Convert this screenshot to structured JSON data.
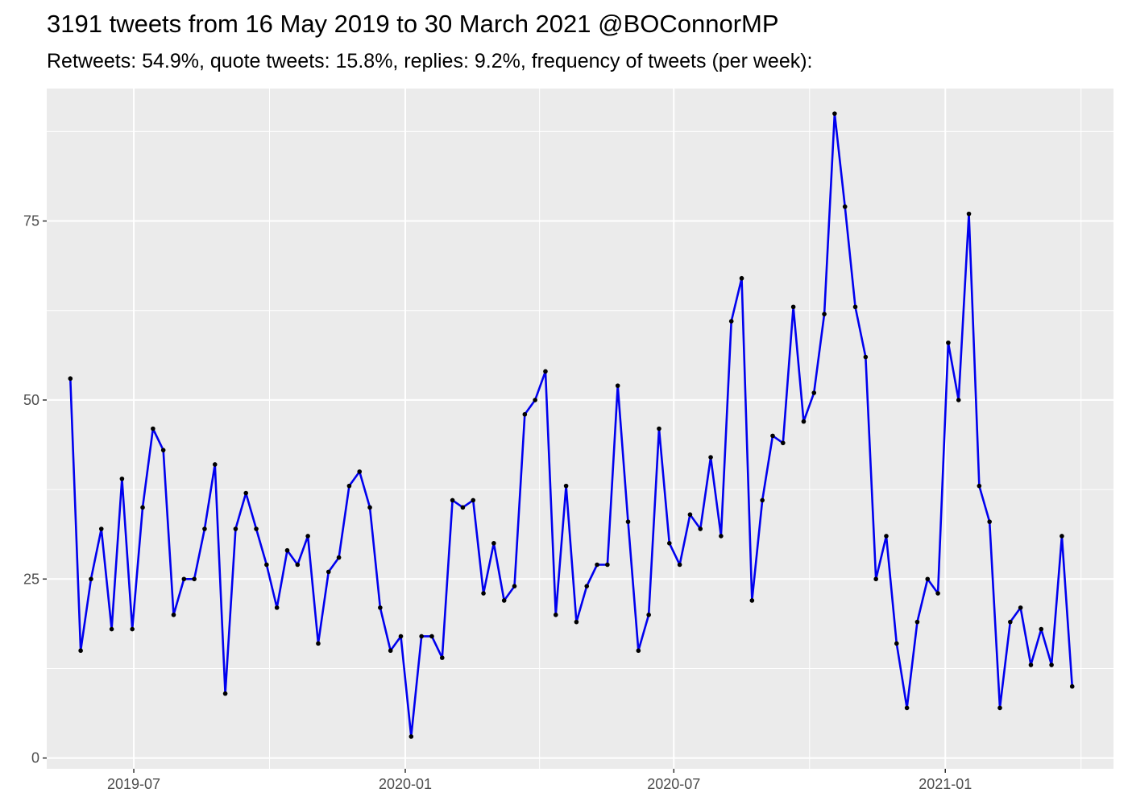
{
  "chart_data": {
    "type": "line",
    "title": "3191 tweets from 16 May 2019 to 30 March 2021 @BOConnorMP",
    "subtitle": "Retweets: 54.9%, quote tweets: 15.8%, replies: 9.2%, frequency of tweets (per week):",
    "xlabel": "",
    "ylabel": "",
    "x_ticks": [
      "2019-07",
      "2020-01",
      "2020-07",
      "2021-01"
    ],
    "y_ticks": [
      0,
      25,
      50,
      75
    ],
    "xlim": [
      "2019-05-03",
      "2021-04-25"
    ],
    "ylim": [
      -1.5,
      93.5
    ],
    "grid": true,
    "legend": "none",
    "colors": {
      "line": "#0000ee",
      "points": "#000000",
      "panel": "#ebebeb",
      "grid": "#ffffff"
    },
    "x": [
      "2019-05-19",
      "2019-05-26",
      "2019-06-02",
      "2019-06-09",
      "2019-06-16",
      "2019-06-23",
      "2019-06-30",
      "2019-07-07",
      "2019-07-14",
      "2019-07-21",
      "2019-07-28",
      "2019-08-04",
      "2019-08-11",
      "2019-08-18",
      "2019-08-25",
      "2019-09-01",
      "2019-09-08",
      "2019-09-15",
      "2019-09-22",
      "2019-09-29",
      "2019-10-06",
      "2019-10-13",
      "2019-10-20",
      "2019-10-27",
      "2019-11-03",
      "2019-11-10",
      "2019-11-17",
      "2019-11-24",
      "2019-12-01",
      "2019-12-08",
      "2019-12-15",
      "2019-12-22",
      "2019-12-29",
      "2020-01-05",
      "2020-01-12",
      "2020-01-19",
      "2020-01-26",
      "2020-02-02",
      "2020-02-09",
      "2020-02-16",
      "2020-02-23",
      "2020-03-01",
      "2020-03-08",
      "2020-03-15",
      "2020-03-22",
      "2020-03-29",
      "2020-04-05",
      "2020-04-12",
      "2020-04-19",
      "2020-04-26",
      "2020-05-03",
      "2020-05-10",
      "2020-05-17",
      "2020-05-24",
      "2020-05-31",
      "2020-06-07",
      "2020-06-14",
      "2020-06-21",
      "2020-06-28",
      "2020-07-05",
      "2020-07-12",
      "2020-07-19",
      "2020-07-26",
      "2020-08-02",
      "2020-08-09",
      "2020-08-16",
      "2020-08-23",
      "2020-08-30",
      "2020-09-06",
      "2020-09-13",
      "2020-09-20",
      "2020-09-27",
      "2020-10-04",
      "2020-10-11",
      "2020-10-18",
      "2020-10-25",
      "2020-11-01",
      "2020-11-08",
      "2020-11-15",
      "2020-11-22",
      "2020-11-29",
      "2020-12-06",
      "2020-12-13",
      "2020-12-20",
      "2020-12-27",
      "2021-01-03",
      "2021-01-10",
      "2021-01-17",
      "2021-01-24",
      "2021-01-31",
      "2021-02-07",
      "2021-02-14",
      "2021-02-21",
      "2021-02-28",
      "2021-03-07",
      "2021-03-14",
      "2021-03-21",
      "2021-03-28"
    ],
    "values": [
      53,
      15,
      25,
      32,
      18,
      39,
      18,
      35,
      46,
      43,
      20,
      25,
      25,
      32,
      41,
      9,
      32,
      37,
      32,
      27,
      21,
      29,
      27,
      31,
      16,
      26,
      28,
      38,
      40,
      35,
      21,
      15,
      17,
      3,
      17,
      17,
      14,
      36,
      35,
      36,
      23,
      30,
      22,
      24,
      48,
      50,
      54,
      20,
      38,
      19,
      24,
      27,
      27,
      52,
      33,
      15,
      20,
      46,
      30,
      27,
      34,
      32,
      42,
      31,
      61,
      67,
      22,
      36,
      45,
      44,
      63,
      47,
      51,
      62,
      90,
      77,
      63,
      56,
      25,
      31,
      16,
      7,
      19,
      25,
      23,
      58,
      50,
      76,
      38,
      33,
      7,
      19,
      21,
      13,
      18,
      13,
      31,
      10
    ]
  }
}
